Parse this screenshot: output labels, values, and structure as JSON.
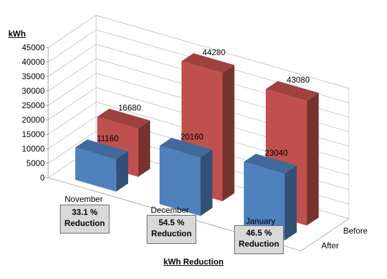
{
  "chart_data": {
    "type": "bar",
    "subtype": "3d-clustered-depth",
    "title": "",
    "ylabel": "kWh",
    "xlabel": "kWh Reduction",
    "ylim": [
      0,
      45000
    ],
    "yticks": [
      "0",
      "5000",
      "10000",
      "15000",
      "20000",
      "25000",
      "30000",
      "35000",
      "40000",
      "45000"
    ],
    "categories": [
      "November",
      "December",
      "January"
    ],
    "series": [
      {
        "name": "Before",
        "values": [
          16680,
          44280,
          43080
        ],
        "color": "#c0504d"
      },
      {
        "name": "After",
        "values": [
          11160,
          20160,
          23040
        ],
        "color": "#4f81bd"
      }
    ],
    "annotations": [
      {
        "line1": "33.1 %",
        "line2": "Reduction"
      },
      {
        "line1": "54.5 %",
        "line2": "Reduction"
      },
      {
        "line1": "46.5 %",
        "line2": "Reduction"
      }
    ],
    "grid": true,
    "legend": "none"
  }
}
